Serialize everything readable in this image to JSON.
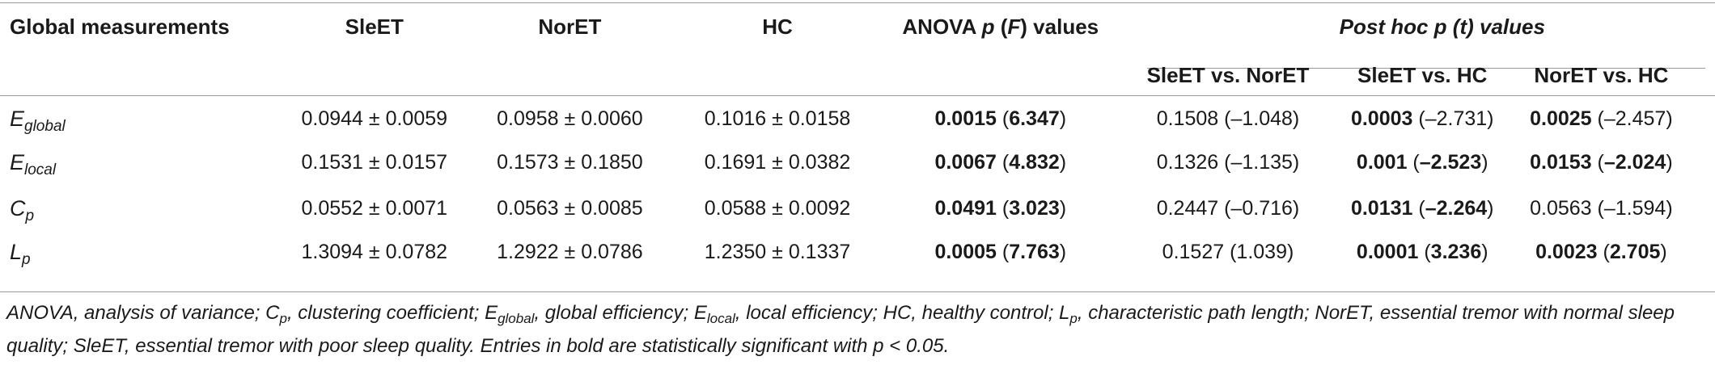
{
  "table": {
    "headers": {
      "global": "Global measurements",
      "sleet": "SleET",
      "noret": "NorET",
      "hc": "HC",
      "anova_pre": "ANOVA ",
      "anova_p": "p",
      "anova_open": " (",
      "anova_f": "F",
      "anova_post": ") values",
      "posthoc_pre": "Post hoc p (",
      "posthoc_t": "t",
      "posthoc_post": ") values",
      "sub1": "SleET vs. NorET",
      "sub2": "SleET vs. HC",
      "sub3": "NorET vs. HC"
    },
    "rows": [
      {
        "label_main": "E",
        "label_sub": "global",
        "sleet": "0.0944 ± 0.0059",
        "noret": "0.0958 ± 0.0060",
        "hc": "0.1016 ± 0.0158",
        "anova_p": "0.0015",
        "anova_f": "6.347",
        "ph1_p": "0.1508",
        "ph1_t": "–1.048",
        "ph2_p": "0.0003",
        "ph2_t": "–2.731",
        "ph3_p": "0.0025",
        "ph3_t": "–2.457"
      },
      {
        "label_main": "E",
        "label_sub": "local",
        "sleet": "0.1531 ± 0.0157",
        "noret": "0.1573 ± 0.1850",
        "hc": "0.1691 ± 0.0382",
        "anova_p": "0.0067",
        "anova_f": "4.832",
        "ph1_p": "0.1326",
        "ph1_t": "–1.135",
        "ph2_p": "0.001",
        "ph2_t": "–2.523",
        "ph3_p": "0.0153",
        "ph3_t": "–2.024"
      },
      {
        "label_main": "C",
        "label_sub": "p",
        "sleet": "0.0552 ± 0.0071",
        "noret": "0.0563 ± 0.0085",
        "hc": "0.0588 ± 0.0092",
        "anova_p": "0.0491",
        "anova_f": "3.023",
        "ph1_p": "0.2447",
        "ph1_t": "–0.716",
        "ph2_p": "0.0131",
        "ph2_t": "–2.264",
        "ph3_p": "0.0563",
        "ph3_t": "–1.594"
      },
      {
        "label_main": "L",
        "label_sub": "p",
        "sleet": "1.3094 ± 0.0782",
        "noret": "1.2922 ± 0.0786",
        "hc": "1.2350 ± 0.1337",
        "anova_p": "0.0005",
        "anova_f": "7.763",
        "ph1_p": "0.1527",
        "ph1_t": "1.039",
        "ph2_p": "0.0001",
        "ph2_t": "3.236",
        "ph3_p": "0.0023",
        "ph3_t": "2.705"
      }
    ]
  },
  "footnote": {
    "p1": "ANOVA, analysis of variance; C",
    "s1": "p",
    "p2": ", clustering coefficient; E",
    "s2": "global",
    "p3": ", global efficiency; E",
    "s3": "local",
    "p4": ", local efficiency; HC, healthy control; L",
    "s4": "p",
    "p5": ", characteristic path length; NorET, essential tremor with normal sleep quality; SleET, essential tremor with poor sleep quality. Entries in bold are statistically significant with p < 0.05."
  }
}
